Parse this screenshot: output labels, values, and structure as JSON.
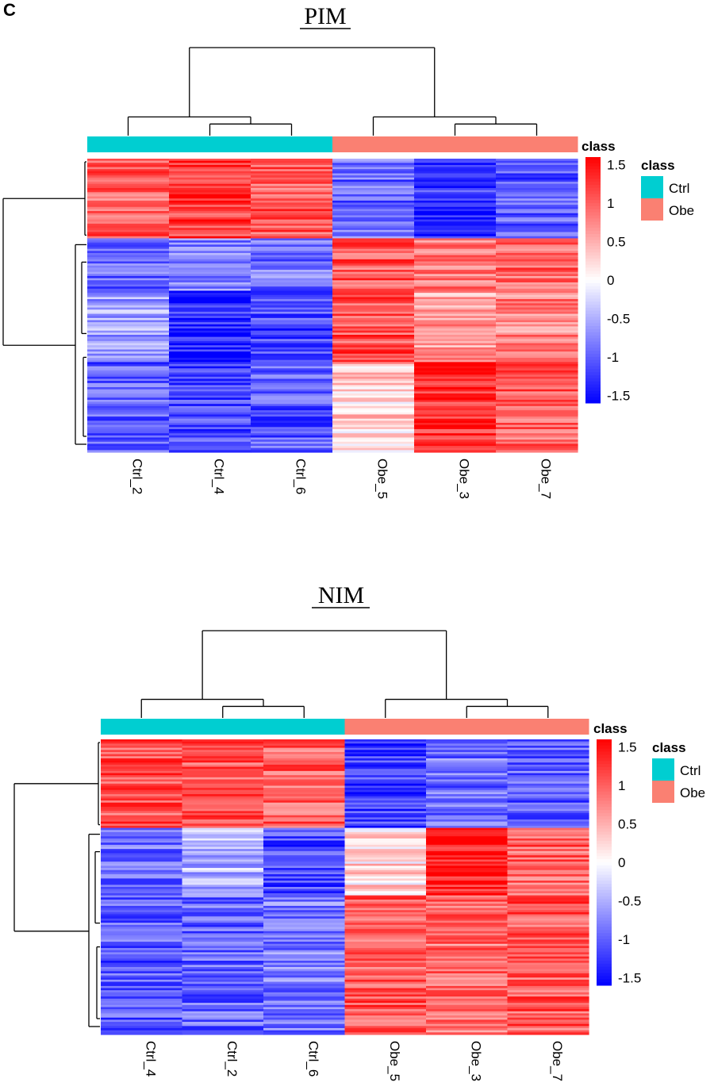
{
  "panel_label": "C",
  "colors": {
    "ctrl": "#00CED1",
    "obe": "#FA8072",
    "low": "#0000FF",
    "mid": "#FFFFFF",
    "high": "#FF0000",
    "dendro": "#000000"
  },
  "chart_data": [
    {
      "type": "heatmap",
      "title": "PIM",
      "annotation_label": "class",
      "legend": {
        "title": "class",
        "position": "right",
        "items": [
          {
            "label": "Ctrl",
            "color": "#00CED1"
          },
          {
            "label": "Obe",
            "color": "#FA8072"
          }
        ]
      },
      "colorbar": {
        "range": [
          -1.6,
          1.6
        ],
        "ticks": [
          1.5,
          1,
          0.5,
          0,
          -0.5,
          -1,
          -1.5
        ],
        "tick_labels": [
          "1.5",
          "1",
          "0.5",
          "0",
          "-0.5",
          "-1",
          "-1.5"
        ]
      },
      "columns": [
        "Ctrl_2",
        "Ctrl_4",
        "Ctrl_6",
        "Obe_5",
        "Obe_3",
        "Obe_7"
      ],
      "column_groups": [
        "Ctrl",
        "Ctrl",
        "Ctrl",
        "Obe",
        "Obe",
        "Obe"
      ],
      "row_clusters": [
        {
          "fraction": 0.27,
          "means": [
            1.0,
            1.25,
            1.05,
            -0.95,
            -1.3,
            -1.05
          ]
        },
        {
          "fraction": 0.18,
          "means": [
            -1.0,
            -0.8,
            -0.9,
            1.05,
            0.9,
            0.95
          ]
        },
        {
          "fraction": 0.24,
          "means": [
            -0.6,
            -1.35,
            -1.15,
            1.1,
            0.6,
            0.8
          ]
        },
        {
          "fraction": 0.31,
          "means": [
            -1.0,
            -1.1,
            -1.05,
            0.3,
            1.35,
            1.0
          ]
        }
      ]
    },
    {
      "type": "heatmap",
      "title": "NIM",
      "annotation_label": "class",
      "legend": {
        "title": "class",
        "position": "right",
        "items": [
          {
            "label": "Ctrl",
            "color": "#00CED1"
          },
          {
            "label": "Obe",
            "color": "#FA8072"
          }
        ]
      },
      "colorbar": {
        "range": [
          -1.6,
          1.6
        ],
        "ticks": [
          1.5,
          1,
          0.5,
          0,
          -0.5,
          -1,
          -1.5
        ],
        "tick_labels": [
          "1.5",
          "1",
          "0.5",
          "0",
          "-0.5",
          "-1",
          "-1.5"
        ]
      },
      "columns": [
        "Ctrl_4",
        "Ctrl_2",
        "Ctrl_6",
        "Obe_5",
        "Obe_3",
        "Obe_7"
      ],
      "column_groups": [
        "Ctrl",
        "Ctrl",
        "Ctrl",
        "Obe",
        "Obe",
        "Obe"
      ],
      "row_clusters": [
        {
          "fraction": 0.3,
          "means": [
            1.1,
            1.05,
            1.0,
            -1.2,
            -0.9,
            -1.0
          ]
        },
        {
          "fraction": 0.23,
          "means": [
            -0.9,
            -0.45,
            -1.15,
            0.25,
            1.45,
            1.0
          ]
        },
        {
          "fraction": 0.47,
          "means": [
            -1.05,
            -0.95,
            -0.85,
            1.05,
            0.9,
            1.05
          ]
        }
      ]
    }
  ]
}
